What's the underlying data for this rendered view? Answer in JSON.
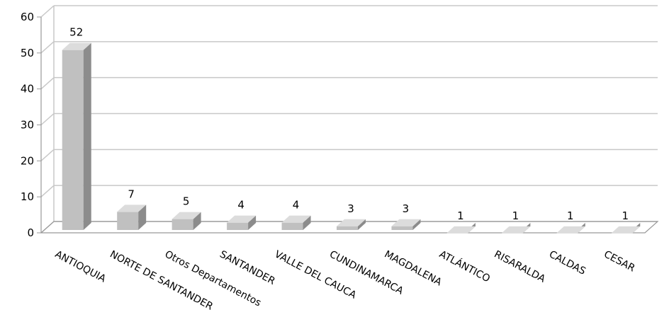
{
  "chart_data": {
    "type": "bar",
    "title": "",
    "xlabel": "",
    "ylabel": "",
    "ylim": [
      0,
      60
    ],
    "yticks": [
      0,
      10,
      20,
      30,
      40,
      50,
      60
    ],
    "grid": true,
    "three_d": true,
    "categories": [
      "ANTIOQUIA",
      "NORTE DE SANTANDER",
      "Otros Departamentos",
      "SANTANDER",
      "VALLE DEL CAUCA",
      "CUNDINAMARCA",
      "MAGDALENA",
      "ATLÁNTICO",
      "RISARALDA",
      "CALDAS",
      "CESAR"
    ],
    "values": [
      52,
      7,
      5,
      4,
      4,
      3,
      3,
      1,
      1,
      1,
      1
    ],
    "data_labels": [
      "52",
      "7",
      "5",
      "4",
      "4",
      "3",
      "3",
      "1",
      "1",
      "1",
      "1"
    ],
    "colors": {
      "bar_front": "#c0c0c0",
      "bar_side": "#8c8c8c",
      "bar_top": "#dcdcdc",
      "grid": "#c8c8c8",
      "axis": "#999999"
    }
  }
}
